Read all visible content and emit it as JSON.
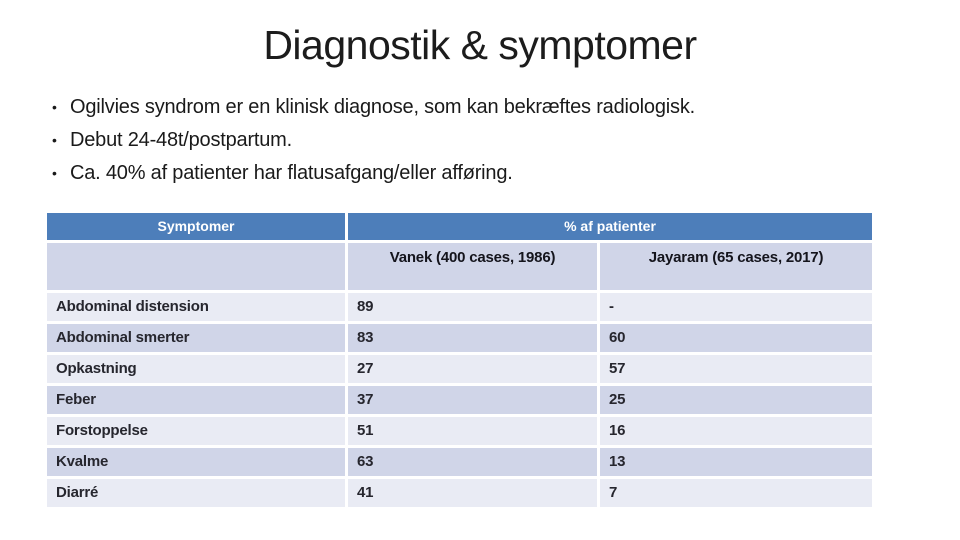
{
  "slide": {
    "title": "Diagnostik & symptomer",
    "bullet_glyph": "•",
    "bullets": [
      "Ogilvies syndrom er en klinisk diagnose, som kan bekræftes radiologisk.",
      "Debut 24-48t/postpartum.",
      "Ca. 40% af patienter har flatusafgang/eller afføring."
    ],
    "table": {
      "header_symptom": "Symptomer",
      "header_percent": "% af patienter",
      "subheaders": [
        "Vanek (400 cases, 1986)",
        "Jayaram (65 cases, 2017)"
      ],
      "rows": [
        [
          "Abdominal distension",
          "89",
          "-"
        ],
        [
          "Abdominal smerter",
          "83",
          "60"
        ],
        [
          "Opkastning",
          "27",
          "57"
        ],
        [
          "Feber",
          "37",
          "25"
        ],
        [
          "Forstoppelse",
          "51",
          "16"
        ],
        [
          "Kvalme",
          "63",
          "13"
        ],
        [
          "Diarré",
          "41",
          "7"
        ]
      ]
    },
    "colors": {
      "header_blue": "#4d7eba",
      "header_text": "#ffffff",
      "band_dark": "#d0d5e8",
      "band_light": "#e9ebf4",
      "text_dark": "#26262e"
    }
  }
}
